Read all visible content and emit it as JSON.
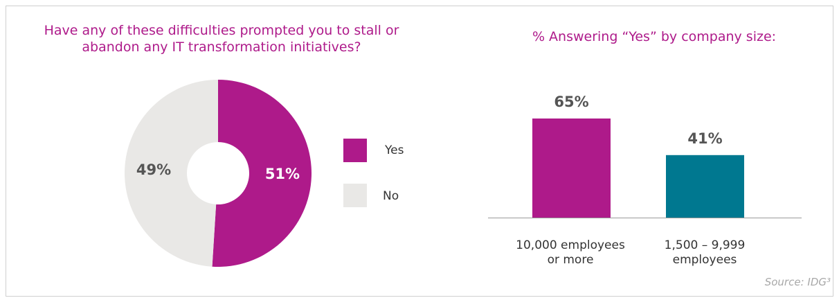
{
  "chart_data": [
    {
      "type": "pie",
      "title": "Have any of these difficulties prompted you to stall or abandon any IT transformation initiatives?",
      "title_lines": [
        "Have any of these difficulties prompted you to stall or",
        "abandon any IT transformation initiatives?"
      ],
      "donut": true,
      "slices": [
        {
          "name": "Yes",
          "value": 51,
          "label": "51%",
          "color": "#ae1a8a",
          "label_color": "#ffffff"
        },
        {
          "name": "No",
          "value": 49,
          "label": "49%",
          "color": "#e9e8e6",
          "label_color": "#555555"
        }
      ],
      "legend": {
        "placement": "right",
        "entries": [
          "Yes",
          "No"
        ]
      }
    },
    {
      "type": "bar",
      "title": "% Answering “Yes” by company size:",
      "categories": [
        "10,000 employees or more",
        "1,500 – 9,999 employees"
      ],
      "category_lines": [
        [
          "10,000 employees",
          "or more"
        ],
        [
          "1,500 – 9,999",
          "employees"
        ]
      ],
      "values": [
        65,
        41
      ],
      "value_labels": [
        "65%",
        "41%"
      ],
      "colors": [
        "#ae1a8a",
        "#007890"
      ],
      "ylim": [
        0,
        100
      ],
      "grid": false
    }
  ],
  "source": "Source: IDG³"
}
